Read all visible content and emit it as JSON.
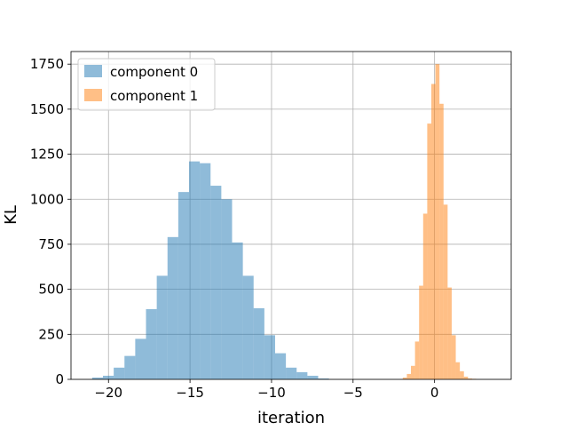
{
  "chart_data": {
    "type": "bar",
    "title": "",
    "xlabel": "iteration",
    "ylabel": "KL",
    "xlim": [
      -22.3,
      4.7
    ],
    "ylim": [
      0,
      1820
    ],
    "grid": true,
    "legend_position": "top-left",
    "x_ticks": [
      {
        "value": -20,
        "label": "−20"
      },
      {
        "value": -15,
        "label": "−15"
      },
      {
        "value": -10,
        "label": "−10"
      },
      {
        "value": -5,
        "label": "−5"
      },
      {
        "value": 0,
        "label": "0"
      }
    ],
    "y_ticks": [
      {
        "value": 0,
        "label": "0"
      },
      {
        "value": 250,
        "label": "250"
      },
      {
        "value": 500,
        "label": "500"
      },
      {
        "value": 750,
        "label": "750"
      },
      {
        "value": 1000,
        "label": "1000"
      },
      {
        "value": 1250,
        "label": "1250"
      },
      {
        "value": 1500,
        "label": "1500"
      },
      {
        "value": 1750,
        "label": "1750"
      }
    ],
    "series": [
      {
        "name": "component 0",
        "color": "#1f77b4",
        "opacity": 0.5,
        "bin_edges": [
          -21.0,
          -20.34,
          -19.68,
          -19.02,
          -18.36,
          -17.7,
          -17.04,
          -16.38,
          -15.72,
          -15.06,
          -14.4,
          -13.74,
          -13.08,
          -12.42,
          -11.76,
          -11.1,
          -10.44,
          -9.78,
          -9.12,
          -8.46,
          -7.8,
          -7.14,
          -6.48
        ],
        "values": [
          10,
          20,
          65,
          130,
          225,
          390,
          575,
          790,
          1040,
          1210,
          1200,
          1075,
          1000,
          760,
          575,
          395,
          245,
          145,
          65,
          40,
          20,
          5
        ]
      },
      {
        "name": "component 1",
        "color": "#ff7f0e",
        "opacity": 0.5,
        "bin_edges": [
          -1.95,
          -1.7,
          -1.45,
          -1.2,
          -0.95,
          -0.7,
          -0.45,
          -0.2,
          0.05,
          0.3,
          0.55,
          0.8,
          1.05,
          1.3,
          1.55,
          1.8,
          2.05,
          2.3,
          2.55
        ],
        "values": [
          10,
          30,
          75,
          210,
          520,
          920,
          1420,
          1640,
          1750,
          1530,
          970,
          510,
          245,
          95,
          45,
          15,
          5,
          3
        ]
      }
    ]
  }
}
